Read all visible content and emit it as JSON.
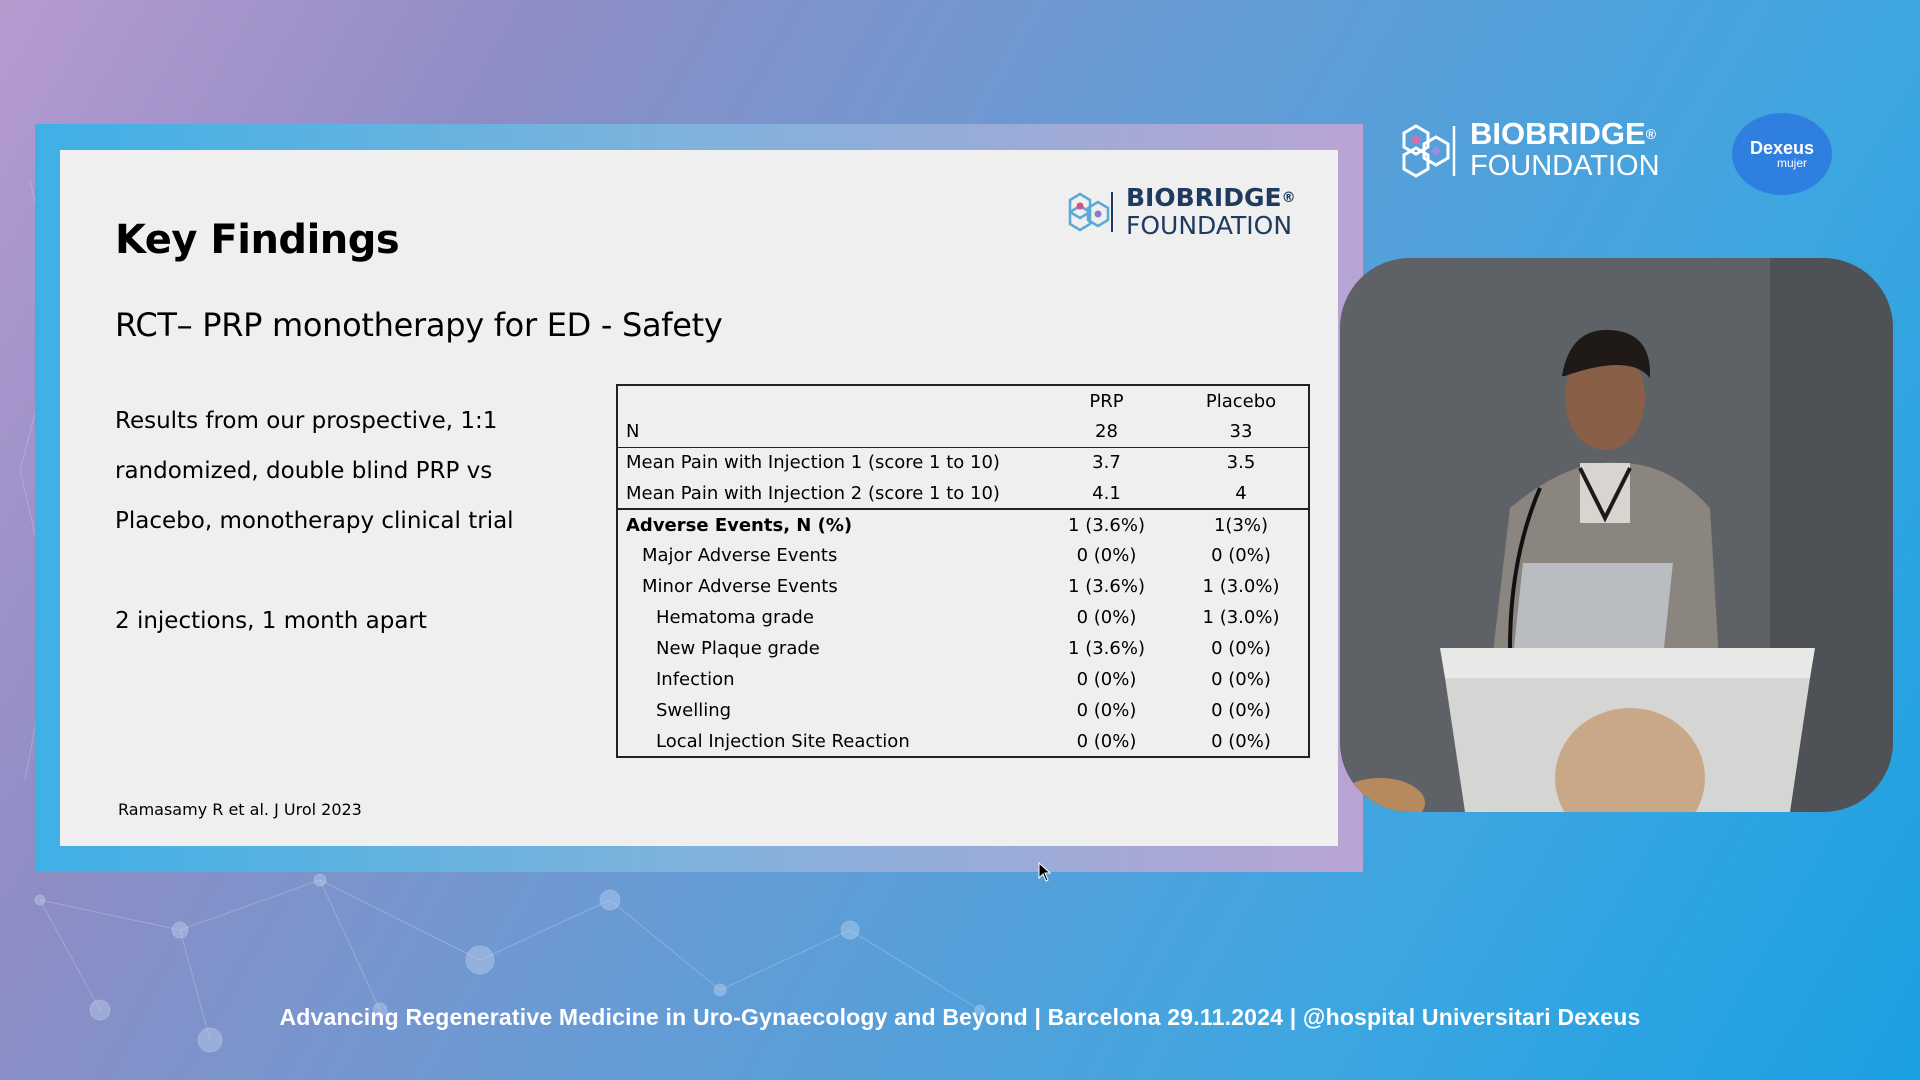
{
  "slide": {
    "title": "Key Findings",
    "subtitle": "RCT– PRP monotherapy for ED - Safety",
    "body_paragraph_1": "Results from our prospective, 1:1 randomized, double blind PRP vs Placebo, monotherapy clinical trial",
    "body_paragraph_2": "2 injections, 1 month apart",
    "citation": "Ramasamy R et al. J Urol 2023",
    "logo_line1": "BIOBRIDGE",
    "logo_line2": "FOUNDATION",
    "logo_reg": "®"
  },
  "table": {
    "headers": [
      "",
      "PRP",
      "Placebo"
    ],
    "rows": [
      {
        "label": "N",
        "prp": "28",
        "placebo": "33"
      },
      {
        "label": "Mean Pain with Injection 1 (score 1 to 10)",
        "prp": "3.7",
        "placebo": "3.5"
      },
      {
        "label": "Mean Pain with Injection 2 (score 1 to 10)",
        "prp": "4.1",
        "placebo": "4"
      },
      {
        "label": "Adverse Events, N (%)",
        "prp": "1 (3.6%)",
        "placebo": "1(3%)"
      },
      {
        "label": "Major Adverse Events",
        "prp": "0 (0%)",
        "placebo": "0 (0%)"
      },
      {
        "label": "Minor Adverse Events",
        "prp": "1 (3.6%)",
        "placebo": "1 (3.0%)"
      },
      {
        "label": "Hematoma grade",
        "prp": "0 (0%)",
        "placebo": "1 (3.0%)"
      },
      {
        "label": "New Plaque grade",
        "prp": "1 (3.6%)",
        "placebo": "0 (0%)"
      },
      {
        "label": "Infection",
        "prp": "0 (0%)",
        "placebo": "0 (0%)"
      },
      {
        "label": "Swelling",
        "prp": "0 (0%)",
        "placebo": "0 (0%)"
      },
      {
        "label": "Local Injection Site Reaction",
        "prp": "0 (0%)",
        "placebo": "0 (0%)"
      }
    ]
  },
  "brand": {
    "line1": "BIOBRIDGE",
    "line2": "FOUNDATION",
    "reg": "®"
  },
  "dexeus": {
    "name": "Dexeus",
    "sub": "mujer"
  },
  "footer": {
    "text": "Advancing Regenerative Medicine in Uro-Gynaecology and Beyond | Barcelona 29.11.2024 | @hospital Universitari Dexeus"
  },
  "colors": {
    "logo_blue": "#1e3a5f",
    "hex_accent": "#d34f8a",
    "dexeus_blue": "#2f7fe0"
  }
}
